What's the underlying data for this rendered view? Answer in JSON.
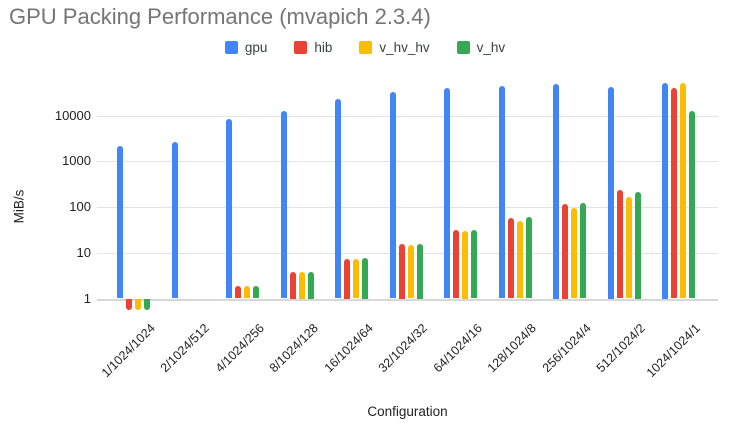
{
  "chart_data": {
    "type": "bar",
    "title": "GPU Packing Performance (mvapich 2.3.4)",
    "xlabel": "Configuration",
    "ylabel": "MiB/s",
    "y_scale": "log",
    "y_ticks": [
      1,
      10,
      100,
      1000,
      10000
    ],
    "ylim": [
      0.5,
      66000
    ],
    "grid": true,
    "legend_position": "top",
    "categories": [
      "1/1024/1024",
      "2/1024/512",
      "4/1024/256",
      "8/1024/128",
      "16/1024/64",
      "32/1024/32",
      "64/1024/16",
      "128/1024/8",
      "256/1024/4",
      "512/1024/2",
      "1024/1024/1"
    ],
    "series": [
      {
        "name": "gpu",
        "color": "#4285F4",
        "values": [
          2200,
          2600,
          8500,
          12800,
          23300,
          33700,
          40000,
          45500,
          49500,
          43500,
          52000
        ]
      },
      {
        "name": "hib",
        "color": "#EA4335",
        "values": [
          0.55,
          1,
          1.9,
          3.8,
          7.5,
          16,
          32,
          58,
          120,
          240,
          40500
        ]
      },
      {
        "name": "v_hv_hv",
        "color": "#FBBC04",
        "values": [
          0.55,
          1,
          1.9,
          3.8,
          7.4,
          14.5,
          30,
          50,
          95,
          165,
          53000
        ]
      },
      {
        "name": "v_hv",
        "color": "#34A853",
        "values": [
          0.55,
          1,
          1.9,
          3.8,
          7.7,
          16,
          32,
          60,
          125,
          220,
          12400
        ]
      }
    ],
    "colors": {
      "background": "#ffffff",
      "title_text": "#757575",
      "axis_text": "#222222",
      "gridline": "#e3e3e3",
      "baseline": "#d7d7d7"
    }
  }
}
